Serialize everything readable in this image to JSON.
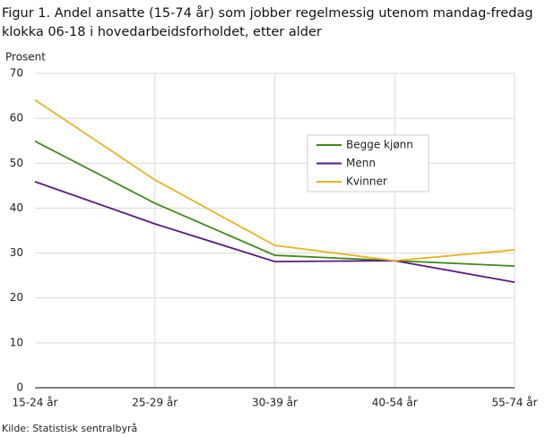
{
  "chart_data": {
    "type": "line",
    "title": [
      "Figur 1. Andel ansatte (15-74 år) som jobber regelmessig utenom mandag-fredag",
      "klokka 06-18  i hovedarbeidsforholdet, etter alder"
    ],
    "y_label": "Prosent",
    "source": "Kilde: Statistisk sentralbyrå",
    "categories": [
      "15-24 år",
      "25-29 år",
      "30-39 år",
      "40-54 år",
      "55-74 år"
    ],
    "series": [
      {
        "name": "Begge kjønn",
        "color": "#3f8a1c",
        "values": [
          54.9,
          41.1,
          29.5,
          28.3,
          27.1
        ]
      },
      {
        "name": "Menn",
        "color": "#5b1a82",
        "values": [
          45.9,
          36.5,
          28.1,
          28.3,
          23.5
        ]
      },
      {
        "name": "Kvinner",
        "color": "#e8b422",
        "values": [
          64.1,
          46.3,
          31.7,
          28.3,
          30.7
        ]
      }
    ],
    "ylim": [
      0,
      70
    ],
    "yticks": [
      0,
      10,
      20,
      30,
      40,
      50,
      60,
      70
    ],
    "grid": true
  }
}
